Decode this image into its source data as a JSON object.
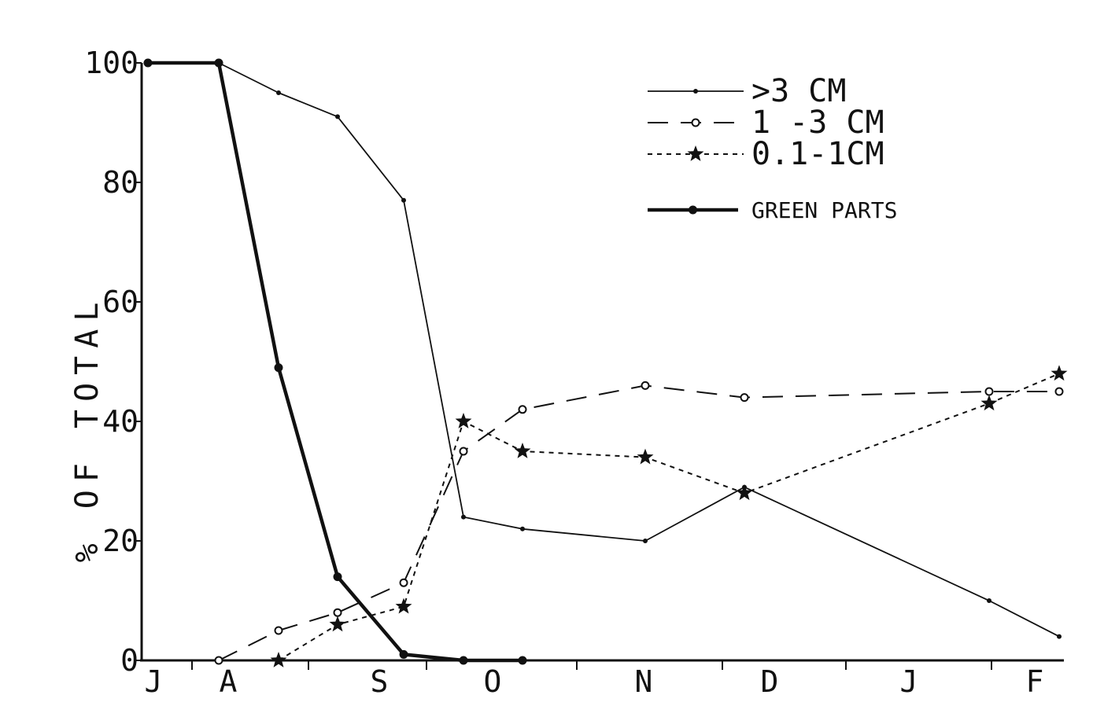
{
  "chart_data": {
    "type": "line",
    "title": "",
    "ylabel": "% OF TOTAL",
    "xlabel": "",
    "ylim": [
      0,
      100
    ],
    "y_ticks": [
      "0",
      "20",
      "40",
      "60",
      "80",
      "100"
    ],
    "x_month_labels": [
      "J",
      "A",
      "S",
      "O",
      "N",
      "D",
      "J",
      "F"
    ],
    "grid": false,
    "legend_position": "top-right",
    "series": [
      {
        "name": ">3 CM",
        "style": "thin-solid-dot",
        "points": [
          [
            0,
            100
          ],
          [
            1,
            100
          ],
          [
            2,
            95
          ],
          [
            3,
            91
          ],
          [
            4,
            77
          ],
          [
            5,
            24
          ],
          [
            6,
            22
          ],
          [
            7,
            20
          ],
          [
            8,
            29
          ],
          [
            9,
            10
          ],
          [
            10,
            4
          ]
        ]
      },
      {
        "name": "1 -3 CM",
        "style": "dashed-open-circle",
        "points": [
          [
            1,
            0
          ],
          [
            2,
            5
          ],
          [
            3,
            8
          ],
          [
            4,
            13
          ],
          [
            5,
            35
          ],
          [
            6,
            42
          ],
          [
            7,
            46
          ],
          [
            8,
            44
          ],
          [
            9,
            45
          ],
          [
            10,
            45
          ]
        ]
      },
      {
        "name": "0.1-1CM",
        "style": "dotted-star",
        "points": [
          [
            2,
            0
          ],
          [
            3,
            6
          ],
          [
            4,
            9
          ],
          [
            5,
            40
          ],
          [
            6,
            35
          ],
          [
            7,
            34
          ],
          [
            8,
            28
          ],
          [
            9,
            43
          ],
          [
            10,
            48
          ]
        ]
      },
      {
        "name": "GREEN PARTS",
        "style": "thick-solid-dot",
        "points": [
          [
            0,
            100
          ],
          [
            1,
            100
          ],
          [
            2,
            49
          ],
          [
            3,
            14
          ],
          [
            4,
            1
          ],
          [
            5,
            0
          ],
          [
            6,
            0
          ]
        ]
      }
    ]
  }
}
